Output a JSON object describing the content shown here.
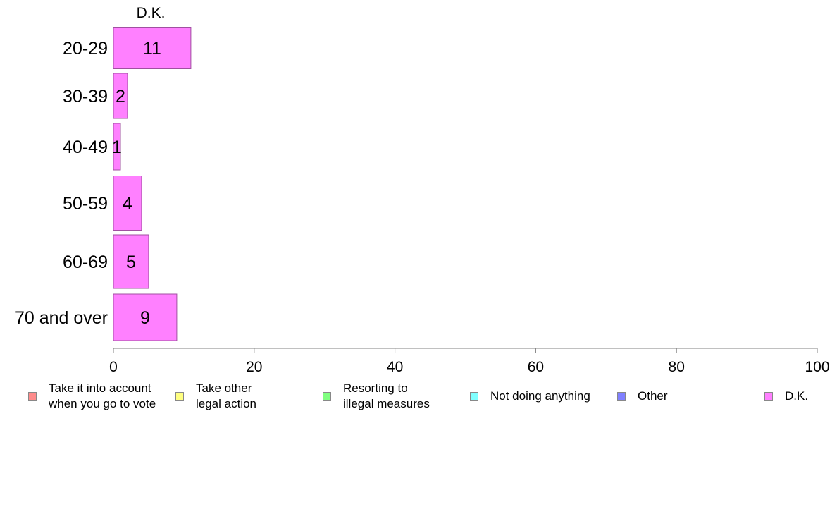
{
  "chart_data": {
    "type": "bar",
    "orientation": "horizontal",
    "title": "D.K.",
    "categories": [
      "20-29",
      "30-39",
      "40-49",
      "50-59",
      "60-69",
      "70 and over"
    ],
    "series": [
      {
        "name": "D.K.",
        "values": [
          11,
          2,
          1,
          4,
          5,
          9
        ],
        "labels": [
          "11",
          "2",
          "1",
          "4",
          "5",
          "9"
        ]
      }
    ],
    "xlim": [
      0,
      100
    ],
    "xticks": [
      0,
      20,
      40,
      60,
      80,
      100
    ],
    "xtick_labels": [
      "0",
      "20",
      "40",
      "60",
      "80",
      "100"
    ],
    "xlabel": "",
    "ylabel": "",
    "grid": false,
    "bar_color": "#ff80ff",
    "bar_edge_color": "#a050a0",
    "axis_color": "#808080",
    "legend_position": "bottom",
    "legend": [
      {
        "label": "Take it into account\nwhen you go to vote",
        "color": "#ff8c8c"
      },
      {
        "label": "Take other\nlegal action",
        "color": "#ffff80"
      },
      {
        "label": "Resorting to\nillegal measures",
        "color": "#80ff80"
      },
      {
        "label": "Not doing anything",
        "color": "#80ffff"
      },
      {
        "label": "Other",
        "color": "#8080ff"
      },
      {
        "label": "D.K.",
        "color": "#ff80ff"
      }
    ]
  }
}
